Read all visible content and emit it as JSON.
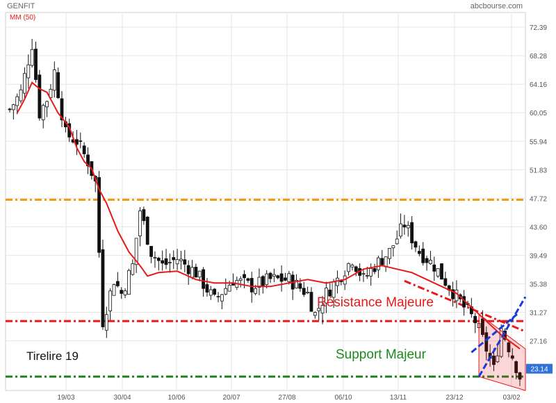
{
  "header": {
    "title": "GENFIT",
    "source": "abcbourse.com",
    "indicator_label": "MM (50)"
  },
  "colors": {
    "ma": "#e8191a",
    "orange_line": "#f39c12",
    "red_line": "#e8191a",
    "green_line": "#1e7d1e",
    "channel": "#1a3ad6",
    "price_tag": "#2f73d6",
    "candle": "#111111"
  },
  "chart_data": {
    "type": "candlestick",
    "y_ticks": [
      "72.39",
      "68.28",
      "64.16",
      "60.05",
      "55.94",
      "51.83",
      "47.72",
      "43.60",
      "39.49",
      "35.38",
      "31.27",
      "27.16"
    ],
    "ylim": [
      20.0,
      74.5
    ],
    "x_ticks": [
      "19/03",
      "30/04",
      "10/06",
      "20/07",
      "27/08",
      "06/10",
      "13/11",
      "23/12",
      "03/02"
    ],
    "last_price": "23.14",
    "trend_closes": [
      [
        0,
        60.5
      ],
      [
        3,
        63
      ],
      [
        6,
        70
      ],
      [
        8,
        60
      ],
      [
        10,
        62
      ],
      [
        12,
        66
      ],
      [
        15,
        57
      ],
      [
        18,
        56
      ],
      [
        21,
        53
      ],
      [
        23,
        50
      ],
      [
        25,
        30
      ],
      [
        28,
        36
      ],
      [
        30,
        34
      ],
      [
        33,
        38
      ],
      [
        35,
        46
      ],
      [
        38,
        40
      ],
      [
        41,
        38
      ],
      [
        45,
        39
      ],
      [
        50,
        37
      ],
      [
        55,
        33
      ],
      [
        60,
        36
      ],
      [
        65,
        35
      ],
      [
        70,
        36
      ],
      [
        75,
        36
      ],
      [
        80,
        34
      ],
      [
        82,
        31
      ],
      [
        85,
        34
      ],
      [
        88,
        36
      ],
      [
        92,
        39
      ],
      [
        95,
        36
      ],
      [
        98,
        38
      ],
      [
        102,
        40
      ],
      [
        106,
        44
      ],
      [
        110,
        40
      ],
      [
        114,
        38
      ],
      [
        118,
        35
      ],
      [
        122,
        32
      ],
      [
        125,
        30
      ],
      [
        128,
        26
      ],
      [
        130,
        23
      ],
      [
        132,
        29
      ],
      [
        135,
        25
      ],
      [
        137,
        22
      ]
    ],
    "ma50": [
      [
        2,
        60
      ],
      [
        4,
        62
      ],
      [
        6,
        64.4
      ],
      [
        8,
        63.5
      ],
      [
        10,
        63
      ],
      [
        13,
        60
      ],
      [
        16,
        58
      ],
      [
        18,
        55
      ],
      [
        20,
        53
      ],
      [
        22,
        52
      ],
      [
        24,
        49
      ],
      [
        26,
        47
      ],
      [
        29,
        43
      ],
      [
        32,
        40
      ],
      [
        35,
        38
      ],
      [
        37,
        36.5
      ],
      [
        40,
        37
      ],
      [
        45,
        37.2
      ],
      [
        50,
        36
      ],
      [
        55,
        35.5
      ],
      [
        60,
        35.5
      ],
      [
        65,
        35
      ],
      [
        70,
        35
      ],
      [
        75,
        35.5
      ],
      [
        80,
        36
      ],
      [
        85,
        35.5
      ],
      [
        90,
        36
      ],
      [
        95,
        37.5
      ],
      [
        100,
        38
      ],
      [
        104,
        37.5
      ],
      [
        108,
        37
      ],
      [
        112,
        36
      ],
      [
        116,
        35
      ],
      [
        120,
        34
      ],
      [
        124,
        32
      ],
      [
        128,
        30
      ],
      [
        132,
        28
      ],
      [
        137,
        26
      ]
    ],
    "horizontal_levels": [
      {
        "value": 47.5,
        "style": "orange-dashdot"
      },
      {
        "value": 30.0,
        "style": "red-dashdot"
      },
      {
        "value": 22.0,
        "style": "green-dashdot"
      }
    ],
    "annotations": {
      "resistance": "Résistance Majeure",
      "support": "Support Majeur",
      "tirelire": "Tirelire 19"
    }
  }
}
